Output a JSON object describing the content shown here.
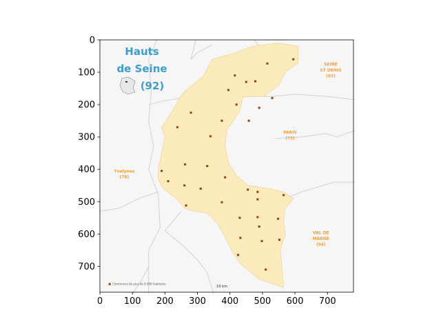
{
  "map": {
    "title_lines": [
      "Hauts",
      "de Seine",
      "(92)"
    ],
    "regions": [
      {
        "lines": [
          "SEINE",
          "ST DENIS",
          "(93)"
        ],
        "x": 710,
        "y": 80
      },
      {
        "lines": [
          "PARIS",
          "(75)"
        ],
        "x": 585,
        "y": 290
      },
      {
        "lines": [
          "Yvelynes",
          "(78)"
        ],
        "x": 75,
        "y": 410
      },
      {
        "lines": [
          "VAL DE",
          "MARNE",
          "(94)"
        ],
        "x": 680,
        "y": 600
      }
    ],
    "legend_text": "Communes de plus de 6 000 habitants",
    "scale_text": "10 km",
    "colors": {
      "frame_bg": "#f6f6f6",
      "department_fill": "#fcecbd",
      "department_stroke": "#f0d69a",
      "border": "#c8c8c8",
      "commune_marker": "#8a3f0f",
      "title": "#3a9ed0",
      "region_label": "#f0a040"
    },
    "communes": [
      [
        595,
        60
      ],
      [
        515,
        73
      ],
      [
        415,
        110
      ],
      [
        450,
        130
      ],
      [
        478,
        128
      ],
      [
        395,
        155
      ],
      [
        530,
        180
      ],
      [
        420,
        200
      ],
      [
        490,
        210
      ],
      [
        280,
        225
      ],
      [
        238,
        270
      ],
      [
        375,
        250
      ],
      [
        458,
        250
      ],
      [
        340,
        298
      ],
      [
        262,
        385
      ],
      [
        330,
        390
      ],
      [
        190,
        405
      ],
      [
        385,
        425
      ],
      [
        210,
        437
      ],
      [
        260,
        450
      ],
      [
        310,
        460
      ],
      [
        455,
        463
      ],
      [
        485,
        470
      ],
      [
        565,
        480
      ],
      [
        375,
        502
      ],
      [
        485,
        493
      ],
      [
        265,
        512
      ],
      [
        430,
        550
      ],
      [
        485,
        548
      ],
      [
        548,
        553
      ],
      [
        490,
        577
      ],
      [
        432,
        612
      ],
      [
        498,
        622
      ],
      [
        552,
        618
      ],
      [
        425,
        665
      ],
      [
        510,
        710
      ]
    ]
  },
  "chart_data": {
    "type": "map",
    "xlim": [
      0,
      780
    ],
    "ylim": [
      780,
      0
    ],
    "xticks": [
      0,
      100,
      200,
      300,
      400,
      500,
      600,
      700
    ],
    "yticks": [
      0,
      100,
      200,
      300,
      400,
      500,
      600,
      700
    ]
  }
}
